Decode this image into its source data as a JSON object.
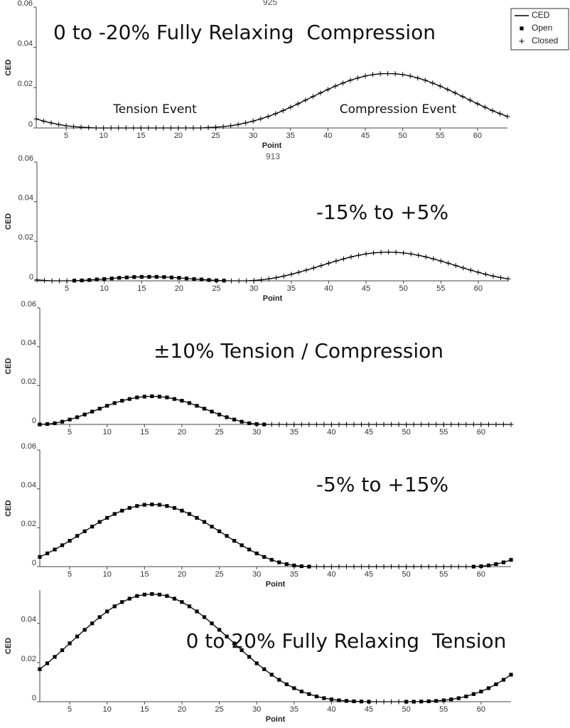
{
  "chart_data": [
    {
      "type": "line",
      "title": "925",
      "annotations": [
        "0 to -20% Fully Relaxing  Compression",
        "Tension Event",
        "Compression Event"
      ],
      "legend": [
        "CED",
        "Open",
        "Closed"
      ],
      "legend_corner": "upper right",
      "xlabel": "Point",
      "ylabel": "CED",
      "color": "#000000",
      "xlim": [
        1,
        64
      ],
      "ylim": [
        0,
        0.06
      ],
      "xticks": [
        5,
        10,
        15,
        20,
        25,
        30,
        35,
        40,
        45,
        50,
        55,
        60
      ],
      "yticks": [
        0,
        0.02,
        0.04,
        0.06
      ],
      "open_ranges": [],
      "x": [
        1,
        2,
        3,
        4,
        5,
        6,
        7,
        8,
        9,
        10,
        11,
        12,
        13,
        14,
        15,
        16,
        17,
        18,
        19,
        20,
        21,
        22,
        23,
        24,
        25,
        26,
        27,
        28,
        29,
        30,
        31,
        32,
        33,
        34,
        35,
        36,
        37,
        38,
        39,
        40,
        41,
        42,
        43,
        44,
        45,
        46,
        47,
        48,
        49,
        50,
        51,
        52,
        53,
        54,
        55,
        56,
        57,
        58,
        59,
        60,
        61,
        62,
        63,
        64
      ],
      "values": [
        0.0045,
        0.0034,
        0.0025,
        0.0017,
        0.0011,
        0.0007,
        0.0004,
        0.0002,
        0,
        0,
        0,
        0,
        0,
        0,
        0,
        0,
        0,
        0,
        0,
        0,
        0,
        0,
        0,
        0.0002,
        0.0004,
        0.0007,
        0.0011,
        0.0017,
        0.0025,
        0.0034,
        0.0045,
        0.0057,
        0.0071,
        0.0086,
        0.0103,
        0.012,
        0.0138,
        0.0156,
        0.0174,
        0.0191,
        0.0208,
        0.0223,
        0.0237,
        0.0248,
        0.0258,
        0.0265,
        0.0269,
        0.027,
        0.0269,
        0.0265,
        0.0258,
        0.0248,
        0.0237,
        0.0223,
        0.0208,
        0.0191,
        0.0174,
        0.0156,
        0.0138,
        0.012,
        0.0103,
        0.0086,
        0.0071,
        0.0057
      ]
    },
    {
      "type": "line",
      "title": "913",
      "annotations": [
        "-15% to +5%"
      ],
      "xlabel": "Point",
      "ylabel": "CED",
      "color": "#000000",
      "xlim": [
        1,
        64
      ],
      "ylim": [
        0,
        0.06
      ],
      "xticks": [
        5,
        10,
        15,
        20,
        25,
        30,
        35,
        40,
        45,
        50,
        55,
        60
      ],
      "yticks": [
        0,
        0.02,
        0.04,
        0.06
      ],
      "open_ranges": [
        [
          6,
          26
        ]
      ],
      "x": [
        1,
        2,
        3,
        4,
        5,
        6,
        7,
        8,
        9,
        10,
        11,
        12,
        13,
        14,
        15,
        16,
        17,
        18,
        19,
        20,
        21,
        22,
        23,
        24,
        25,
        26,
        27,
        28,
        29,
        30,
        31,
        32,
        33,
        34,
        35,
        36,
        37,
        38,
        39,
        40,
        41,
        42,
        43,
        44,
        45,
        46,
        47,
        48,
        49,
        50,
        51,
        52,
        53,
        54,
        55,
        56,
        57,
        58,
        59,
        60,
        61,
        62,
        63,
        64
      ],
      "values": [
        0.0005,
        0.0002,
        0,
        0,
        0,
        0.0001,
        0.0002,
        0.0004,
        0.0007,
        0.0009,
        0.0012,
        0.0015,
        0.0017,
        0.0019,
        0.002,
        0.002,
        0.002,
        0.0019,
        0.0017,
        0.0015,
        0.0012,
        0.0009,
        0.0007,
        0.0004,
        0.0002,
        0.0001,
        0,
        0,
        0,
        0.0002,
        0.0005,
        0.001,
        0.0016,
        0.0024,
        0.0033,
        0.0043,
        0.0054,
        0.0065,
        0.0077,
        0.0089,
        0.01,
        0.0111,
        0.0121,
        0.0129,
        0.0136,
        0.0141,
        0.0144,
        0.0145,
        0.0144,
        0.0141,
        0.0136,
        0.0129,
        0.0121,
        0.0111,
        0.01,
        0.0089,
        0.0077,
        0.0065,
        0.0054,
        0.0043,
        0.0033,
        0.0024,
        0.0016,
        0.001
      ]
    },
    {
      "type": "line",
      "annotations": [
        "±10% Tension / Compression"
      ],
      "ylabel": "CED",
      "color": "#000000",
      "xlim": [
        1,
        64
      ],
      "ylim": [
        0,
        0.06
      ],
      "xticks": [
        5,
        10,
        15,
        20,
        25,
        30,
        35,
        40,
        45,
        50,
        55,
        60
      ],
      "yticks": [
        0,
        0.02,
        0.04,
        0.06
      ],
      "open_ranges": [
        [
          1,
          31
        ]
      ],
      "x": [
        1,
        2,
        3,
        4,
        5,
        6,
        7,
        8,
        9,
        10,
        11,
        12,
        13,
        14,
        15,
        16,
        17,
        18,
        19,
        20,
        21,
        22,
        23,
        24,
        25,
        26,
        27,
        28,
        29,
        30,
        31,
        32,
        33,
        34,
        35,
        36,
        37,
        38,
        39,
        40,
        41,
        42,
        43,
        44,
        45,
        46,
        47,
        48,
        49,
        50,
        51,
        52,
        53,
        54,
        55,
        56,
        57,
        58,
        59,
        60,
        61,
        62,
        63,
        64
      ],
      "values": [
        0,
        0.0002,
        0.0006,
        0.0014,
        0.0025,
        0.0037,
        0.0051,
        0.0066,
        0.0081,
        0.0096,
        0.011,
        0.0122,
        0.0131,
        0.0139,
        0.0143,
        0.0145,
        0.0143,
        0.0139,
        0.0131,
        0.0122,
        0.011,
        0.0096,
        0.0081,
        0.0066,
        0.0051,
        0.0037,
        0.0025,
        0.0014,
        0.0006,
        0.0002,
        0,
        0,
        0,
        0,
        0,
        0,
        0,
        0,
        0,
        0,
        0,
        0,
        0,
        0,
        0,
        0,
        0,
        0,
        0,
        0,
        0,
        0,
        0,
        0,
        0,
        0,
        0,
        0,
        0,
        0,
        0,
        0,
        0,
        0
      ]
    },
    {
      "type": "line",
      "annotations": [
        "-5% to +15%"
      ],
      "xlabel": "Point",
      "ylabel": "CED",
      "color": "#000000",
      "xlim": [
        1,
        64
      ],
      "ylim": [
        0,
        0.06
      ],
      "xticks": [
        5,
        10,
        15,
        20,
        25,
        30,
        35,
        40,
        45,
        50,
        55,
        60
      ],
      "yticks": [
        0,
        0.02,
        0.04,
        0.06
      ],
      "open_ranges": [
        [
          1,
          37
        ],
        [
          59,
          64
        ]
      ],
      "x": [
        1,
        2,
        3,
        4,
        5,
        6,
        7,
        8,
        9,
        10,
        11,
        12,
        13,
        14,
        15,
        16,
        17,
        18,
        19,
        20,
        21,
        22,
        23,
        24,
        25,
        26,
        27,
        28,
        29,
        30,
        31,
        32,
        33,
        34,
        35,
        36,
        37,
        38,
        39,
        40,
        41,
        42,
        43,
        44,
        45,
        46,
        47,
        48,
        49,
        50,
        51,
        52,
        53,
        54,
        55,
        56,
        57,
        58,
        59,
        60,
        61,
        62,
        63,
        64
      ],
      "values": [
        0.005,
        0.0068,
        0.0088,
        0.011,
        0.0133,
        0.0158,
        0.0182,
        0.0206,
        0.023,
        0.0251,
        0.0271,
        0.0288,
        0.0302,
        0.0312,
        0.0318,
        0.032,
        0.0318,
        0.0312,
        0.0302,
        0.0288,
        0.0271,
        0.0251,
        0.023,
        0.0206,
        0.0182,
        0.0158,
        0.0133,
        0.011,
        0.0088,
        0.0068,
        0.005,
        0.0035,
        0.0022,
        0.0013,
        0.0006,
        0.0002,
        0,
        0,
        0,
        0,
        0,
        0,
        0,
        0,
        0,
        0,
        0,
        0,
        0,
        0,
        0,
        0,
        0,
        0,
        0,
        0,
        0,
        0,
        0,
        0.0002,
        0.0006,
        0.0013,
        0.0022,
        0.0035
      ]
    },
    {
      "type": "line",
      "annotations": [
        "0 to 20% Fully Relaxing  Tension"
      ],
      "xlabel": "Point",
      "ylabel": "CED",
      "color": "#000000",
      "xlim": [
        1,
        64
      ],
      "ylim": [
        0,
        0.057
      ],
      "xticks": [
        5,
        10,
        15,
        20,
        25,
        30,
        35,
        40,
        45,
        50,
        55,
        60
      ],
      "yticks": [
        0,
        0.02,
        0.04
      ],
      "open_ranges": [
        [
          1,
          45
        ],
        [
          50,
          64
        ]
      ],
      "x": [
        1,
        2,
        3,
        4,
        5,
        6,
        7,
        8,
        9,
        10,
        11,
        12,
        13,
        14,
        15,
        16,
        17,
        18,
        19,
        20,
        21,
        22,
        23,
        24,
        25,
        26,
        27,
        28,
        29,
        30,
        31,
        32,
        33,
        34,
        35,
        36,
        37,
        38,
        39,
        40,
        41,
        42,
        43,
        44,
        45,
        46,
        47,
        48,
        49,
        50,
        51,
        52,
        53,
        54,
        55,
        56,
        57,
        58,
        59,
        60,
        61,
        62,
        63,
        64
      ],
      "values": [
        0.0166,
        0.0196,
        0.0229,
        0.0263,
        0.0298,
        0.0333,
        0.0367,
        0.04,
        0.0432,
        0.0461,
        0.0487,
        0.0509,
        0.0526,
        0.054,
        0.0547,
        0.055,
        0.0547,
        0.054,
        0.0526,
        0.0509,
        0.0487,
        0.0461,
        0.0432,
        0.04,
        0.0367,
        0.0333,
        0.0298,
        0.0263,
        0.0229,
        0.0196,
        0.0166,
        0.0138,
        0.0112,
        0.0089,
        0.0069,
        0.0052,
        0.0039,
        0.0027,
        0.0018,
        0.0012,
        0.0007,
        0.0004,
        0.0002,
        0.0001,
        0,
        0,
        0,
        0,
        0,
        0,
        0,
        0.0001,
        0.0002,
        0.0004,
        0.0007,
        0.0012,
        0.0018,
        0.0027,
        0.0039,
        0.0052,
        0.0069,
        0.0089,
        0.0112,
        0.0138
      ]
    }
  ]
}
